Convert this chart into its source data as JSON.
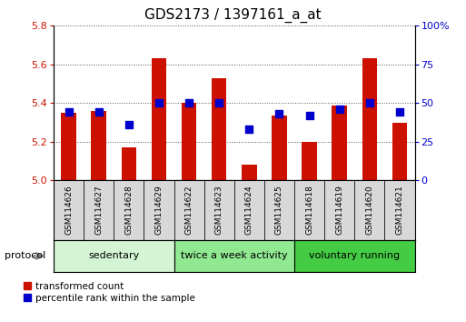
{
  "title": "GDS2173 / 1397161_a_at",
  "samples": [
    "GSM114626",
    "GSM114627",
    "GSM114628",
    "GSM114629",
    "GSM114622",
    "GSM114623",
    "GSM114624",
    "GSM114625",
    "GSM114618",
    "GSM114619",
    "GSM114620",
    "GSM114621"
  ],
  "transformed_count": [
    5.35,
    5.36,
    5.17,
    5.63,
    5.4,
    5.53,
    5.08,
    5.335,
    5.2,
    5.385,
    5.63,
    5.3
  ],
  "percentile_rank": [
    44,
    44,
    36,
    50,
    50,
    50,
    33,
    43,
    42,
    46,
    50,
    44
  ],
  "groups": [
    {
      "label": "sedentary",
      "start": 0,
      "end": 3,
      "color": "#d4f5d4"
    },
    {
      "label": "twice a week activity",
      "start": 4,
      "end": 7,
      "color": "#90e890"
    },
    {
      "label": "voluntary running",
      "start": 8,
      "end": 11,
      "color": "#44cc44"
    }
  ],
  "ylim_left": [
    5.0,
    5.8
  ],
  "ylim_right": [
    0,
    100
  ],
  "yticks_left": [
    5.0,
    5.2,
    5.4,
    5.6,
    5.8
  ],
  "yticks_right": [
    0,
    25,
    50,
    75,
    100
  ],
  "bar_color": "#cc1100",
  "dot_color": "#0000cc",
  "bar_width": 0.5,
  "dot_size": 30,
  "tick_label_color_left": "#cc1100",
  "tick_label_color_right": "#0000cc",
  "legend_items": [
    {
      "label": "transformed count",
      "color": "#cc1100"
    },
    {
      "label": "percentile rank within the sample",
      "color": "#0000cc"
    }
  ],
  "protocol_label": "protocol",
  "title_fontsize": 11,
  "axis_fontsize": 8,
  "sample_fontsize": 6.5,
  "group_fontsize": 8
}
